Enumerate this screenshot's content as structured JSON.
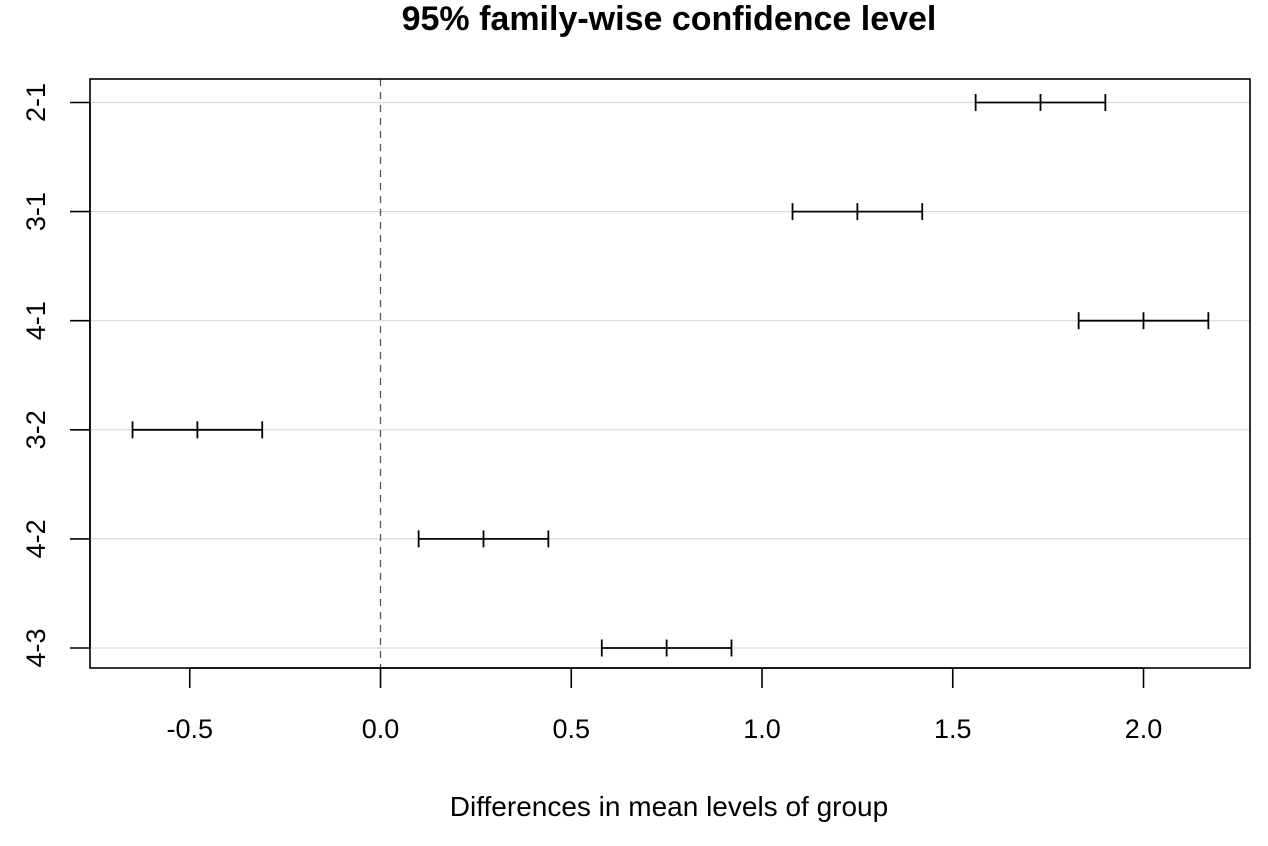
{
  "chart_data": {
    "type": "scatter",
    "title": "95% family-wise confidence level",
    "xlabel": "Differences in mean levels of group",
    "ylabel": "",
    "xlim": [
      -0.76,
      2.29
    ],
    "xticks": [
      -0.5,
      0.0,
      0.5,
      1.0,
      1.5,
      2.0
    ],
    "xtick_labels": [
      "-0.5",
      "0.0",
      "0.5",
      "1.0",
      "1.5",
      "2.0"
    ],
    "reference_line": {
      "x": 0,
      "style": "dashed"
    },
    "grid": "horizontal",
    "comparisons": [
      {
        "label": "2-1",
        "diff": 1.73,
        "lwr": 1.56,
        "upr": 1.9
      },
      {
        "label": "3-1",
        "diff": 1.25,
        "lwr": 1.08,
        "upr": 1.42
      },
      {
        "label": "4-1",
        "diff": 2.0,
        "lwr": 1.83,
        "upr": 2.17
      },
      {
        "label": "3-2",
        "diff": -0.48,
        "lwr": -0.65,
        "upr": -0.31
      },
      {
        "label": "4-2",
        "diff": 0.27,
        "lwr": 0.1,
        "upr": 0.44
      },
      {
        "label": "4-3",
        "diff": 0.75,
        "lwr": 0.58,
        "upr": 0.92
      }
    ]
  }
}
